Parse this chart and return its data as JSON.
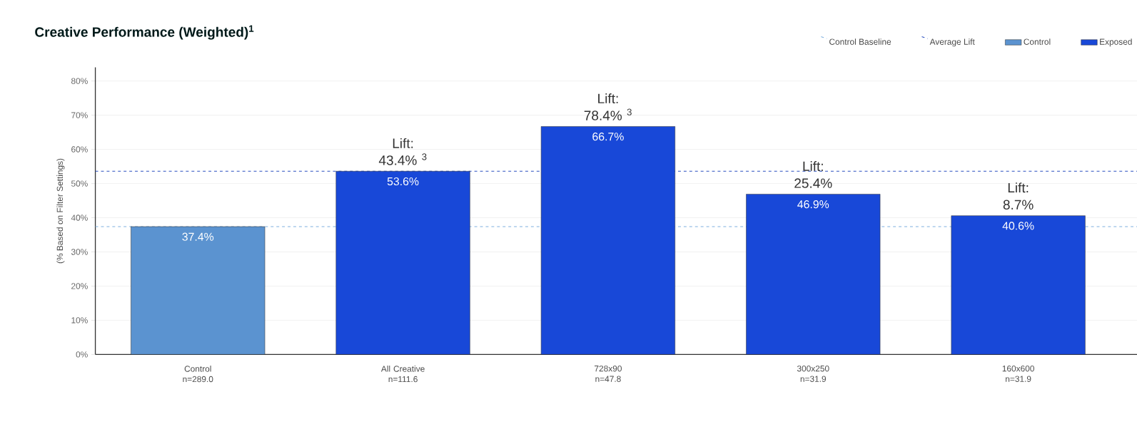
{
  "chart_data": {
    "type": "bar",
    "title": "Creative Performance (Weighted)$^{1}$",
    "ylabel": "(% Based on Filter Settings)",
    "categories": [
      "Control\nn=289.0",
      "All Creative\nn=111.6",
      "728x90\nn=47.8",
      "300x250\nn=31.9",
      "160x600\nn=31.9"
    ],
    "series": [
      {
        "name": "Control",
        "color": "#5b93d0",
        "values": [
          37.4,
          null,
          null,
          null,
          null
        ],
        "value_labels": [
          "37.4%",
          null,
          null,
          null,
          null
        ]
      },
      {
        "name": "Exposed",
        "color": "#1848d8",
        "values": [
          null,
          53.6,
          66.7,
          46.9,
          40.6
        ],
        "value_labels": [
          null,
          "53.6%",
          "66.7%",
          "46.9%",
          "40.6%"
        ]
      }
    ],
    "ylim": [
      0,
      84
    ],
    "yticks": [
      {
        "value": 0,
        "label": "0%"
      },
      {
        "value": 10,
        "label": "10%"
      },
      {
        "value": 20,
        "label": "20%"
      },
      {
        "value": 30,
        "label": "30%"
      },
      {
        "value": 40,
        "label": "40%"
      },
      {
        "value": 50,
        "label": "50%"
      },
      {
        "value": 60,
        "label": "60%"
      },
      {
        "value": 70,
        "label": "70%"
      },
      {
        "value": 80,
        "label": "80%"
      }
    ],
    "grid": "y",
    "legend": "top right",
    "ref_lines": [
      {
        "axis": "y",
        "value": 37.4,
        "label": "Control Baseline",
        "color": "#7fb0e0",
        "line_style": "dashed"
      },
      {
        "axis": "y",
        "value": 53.6,
        "label": "Average Lift",
        "color": "#2a4fc0",
        "line_style": "dashed"
      }
    ],
    "annotations": [
      {
        "text": "Lift:\n43.4% $^{3}$",
        "x": "All Creative\nn=111.6",
        "y": 53.6
      },
      {
        "text": "Lift:\n78.4% $^{3}$",
        "x": "728x90\nn=47.8",
        "y": 66.7
      },
      {
        "text": "Lift:\n25.4%",
        "x": "300x250\nn=31.9",
        "y": 46.9
      },
      {
        "text": "Lift:\n8.7%",
        "x": "160x600\nn=31.9",
        "y": 40.6
      }
    ]
  }
}
